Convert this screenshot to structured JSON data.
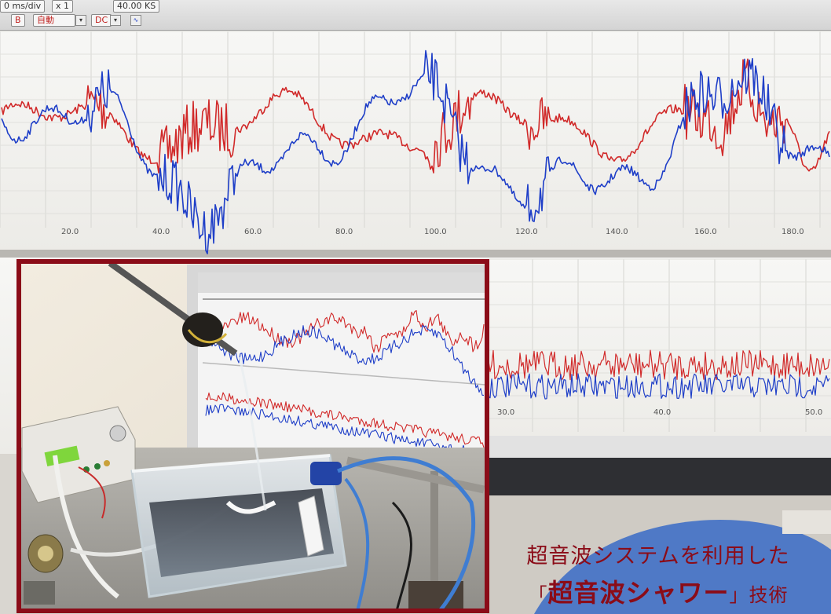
{
  "toolbar": {
    "timebase": "0 ms/div",
    "mult": "x 1",
    "sample_rate": "40.00 KS",
    "channel_b": "B",
    "trigger_mode": "自動",
    "coupling": "DC"
  },
  "upper_axis": {
    "ticks": [
      "20.0",
      "40.0",
      "60.0",
      "80.0",
      "100.0",
      "120.0",
      "140.0",
      "160.0",
      "180.0"
    ]
  },
  "lower_axis": {
    "ticks": [
      "30.0",
      "40.0",
      "50.0"
    ]
  },
  "caption": {
    "line1": "超音波システムを利用した",
    "line2_open": "「",
    "line2_main": "超音波シャワー",
    "line2_close": "」",
    "line2_tail": "技術"
  },
  "colors": {
    "trace_red": "#d12a2a",
    "trace_blue": "#1f3fc8",
    "frame": "#8b0c18",
    "caption": "#8b0c18"
  }
}
